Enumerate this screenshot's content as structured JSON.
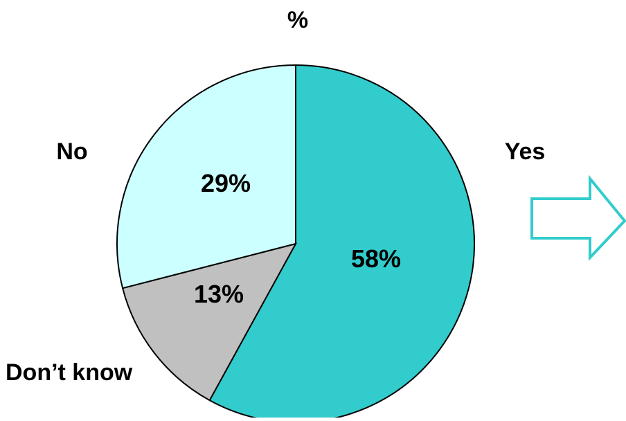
{
  "chart_data": {
    "type": "pie",
    "title": "%",
    "slices": [
      {
        "label": "Yes",
        "value": 58,
        "value_label": "58%",
        "color": "#33CCCC"
      },
      {
        "label": "Don’t know",
        "value": 13,
        "value_label": "13%",
        "color": "#C0C0C0"
      },
      {
        "label": "No",
        "value": 29,
        "value_label": "29%",
        "color": "#CCFFFF"
      }
    ],
    "start": "12 o'clock",
    "direction": "clockwise",
    "outline_color": "#000000"
  },
  "decoration": {
    "arrow_icon": "right-arrow-outline-icon",
    "arrow_color": "#33CCCC"
  }
}
